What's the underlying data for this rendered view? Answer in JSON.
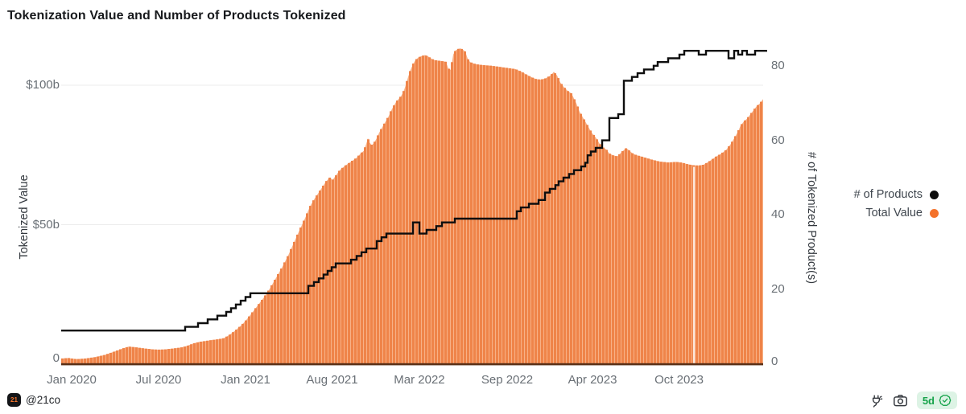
{
  "chart_data": {
    "type": "combo",
    "title": "Tokenization Value and Number of Products Tokenized",
    "x_axis": {
      "ticks": [
        {
          "label": "Jan 2020",
          "f": 0.0149
        },
        {
          "label": "Jul 2020",
          "f": 0.1388
        },
        {
          "label": "Jan 2021",
          "f": 0.2626
        },
        {
          "label": "Aug 2021",
          "f": 0.3859
        },
        {
          "label": "Mar 2022",
          "f": 0.5103
        },
        {
          "label": "Sep 2022",
          "f": 0.6353
        },
        {
          "label": "Apr 2023",
          "f": 0.7569
        },
        {
          "label": "Oct 2023",
          "f": 0.8802
        }
      ]
    },
    "left_axis": {
      "label": "Tokenized Value",
      "unit": "USD billions",
      "range": [
        0,
        116
      ],
      "ticks": [
        {
          "label": "0",
          "v": 0
        },
        {
          "label": "$50b",
          "v": 50
        },
        {
          "label": "$100b",
          "v": 100
        }
      ],
      "grid_values": [
        50,
        100
      ]
    },
    "right_axis": {
      "label": "# of Tokenized Product(s)",
      "range": [
        0,
        87
      ],
      "ticks": [
        {
          "label": "0",
          "v": 0
        },
        {
          "label": "20",
          "v": 20
        },
        {
          "label": "40",
          "v": 40
        },
        {
          "label": "60",
          "v": 60
        },
        {
          "label": "80",
          "v": 80
        }
      ]
    },
    "series": [
      {
        "name": "Total Value",
        "type": "bars",
        "axis": "left",
        "color": "#ef8449",
        "gap_color": "#f8b186",
        "points": [
          [
            0,
            2
          ],
          [
            0.0103,
            2.2
          ],
          [
            0.0218,
            1.8
          ],
          [
            0.0333,
            2
          ],
          [
            0.0482,
            2.5
          ],
          [
            0.0619,
            3.3
          ],
          [
            0.0734,
            4.3
          ],
          [
            0.0872,
            5.6
          ],
          [
            0.0963,
            6.3
          ],
          [
            0.1078,
            6
          ],
          [
            0.1193,
            5.6
          ],
          [
            0.1307,
            5.3
          ],
          [
            0.1388,
            5.2
          ],
          [
            0.1479,
            5.3
          ],
          [
            0.1594,
            5.6
          ],
          [
            0.1709,
            6
          ],
          [
            0.1789,
            6.5
          ],
          [
            0.1881,
            7.4
          ],
          [
            0.1972,
            8
          ],
          [
            0.2053,
            8.3
          ],
          [
            0.2133,
            8.6
          ],
          [
            0.2225,
            8.9
          ],
          [
            0.2317,
            9.3
          ],
          [
            0.2397,
            10.5
          ],
          [
            0.2477,
            12
          ],
          [
            0.2569,
            14
          ],
          [
            0.2626,
            15.5
          ],
          [
            0.2706,
            18
          ],
          [
            0.2798,
            21
          ],
          [
            0.289,
            24
          ],
          [
            0.297,
            27
          ],
          [
            0.305,
            30.5
          ],
          [
            0.3142,
            34.5
          ],
          [
            0.3234,
            39
          ],
          [
            0.3314,
            43.5
          ],
          [
            0.3394,
            48
          ],
          [
            0.3486,
            53
          ],
          [
            0.3544,
            56.5
          ],
          [
            0.3601,
            59
          ],
          [
            0.3681,
            62
          ],
          [
            0.3773,
            65.5
          ],
          [
            0.383,
            67
          ],
          [
            0.3865,
            66
          ],
          [
            0.3911,
            67.5
          ],
          [
            0.3968,
            69.5
          ],
          [
            0.4037,
            71
          ],
          [
            0.4094,
            72
          ],
          [
            0.4151,
            73
          ],
          [
            0.4209,
            74
          ],
          [
            0.4266,
            75.5
          ],
          [
            0.4312,
            76.5
          ],
          [
            0.4346,
            79
          ],
          [
            0.4369,
            81
          ],
          [
            0.4392,
            79.5
          ],
          [
            0.4427,
            78.5
          ],
          [
            0.4461,
            79.5
          ],
          [
            0.4495,
            81
          ],
          [
            0.453,
            83
          ],
          [
            0.4564,
            84.5
          ],
          [
            0.4599,
            86
          ],
          [
            0.4633,
            87.5
          ],
          [
            0.4667,
            89
          ],
          [
            0.4702,
            91
          ],
          [
            0.4736,
            92.5
          ],
          [
            0.4771,
            94
          ],
          [
            0.4805,
            95
          ],
          [
            0.4839,
            96
          ],
          [
            0.4874,
            97.5
          ],
          [
            0.4908,
            100
          ],
          [
            0.4943,
            103
          ],
          [
            0.4977,
            105.5
          ],
          [
            0.5011,
            107.5
          ],
          [
            0.5046,
            109
          ],
          [
            0.5092,
            110
          ],
          [
            0.5138,
            110.5
          ],
          [
            0.5183,
            110.8
          ],
          [
            0.5229,
            110.3
          ],
          [
            0.5275,
            109.5
          ],
          [
            0.5321,
            109
          ],
          [
            0.5378,
            108.8
          ],
          [
            0.5436,
            108.6
          ],
          [
            0.5482,
            108.4
          ],
          [
            0.5516,
            106
          ],
          [
            0.555,
            105.5
          ],
          [
            0.5585,
            111
          ],
          [
            0.5619,
            112.5
          ],
          [
            0.5654,
            113
          ],
          [
            0.5688,
            113.2
          ],
          [
            0.5722,
            112.8
          ],
          [
            0.5757,
            112
          ],
          [
            0.5791,
            109.5
          ],
          [
            0.5826,
            108.3
          ],
          [
            0.5872,
            107.8
          ],
          [
            0.5917,
            107.5
          ],
          [
            0.6009,
            107.2
          ],
          [
            0.6124,
            107
          ],
          [
            0.6239,
            106.6
          ],
          [
            0.6353,
            106.2
          ],
          [
            0.6468,
            105.8
          ],
          [
            0.656,
            104.8
          ],
          [
            0.6628,
            103.8
          ],
          [
            0.6697,
            102.9
          ],
          [
            0.6766,
            102.2
          ],
          [
            0.6835,
            102
          ],
          [
            0.6904,
            102.5
          ],
          [
            0.6972,
            103.5
          ],
          [
            0.7018,
            104.8
          ],
          [
            0.7064,
            103.5
          ],
          [
            0.711,
            101
          ],
          [
            0.7156,
            99.5
          ],
          [
            0.7213,
            98
          ],
          [
            0.7271,
            97
          ],
          [
            0.7339,
            93.5
          ],
          [
            0.7385,
            90.5
          ],
          [
            0.7443,
            88
          ],
          [
            0.75,
            85.5
          ],
          [
            0.7557,
            83
          ],
          [
            0.7615,
            81.3
          ],
          [
            0.7672,
            79
          ],
          [
            0.7729,
            77.5
          ],
          [
            0.7764,
            77
          ],
          [
            0.781,
            75.5
          ],
          [
            0.7867,
            74.8
          ],
          [
            0.7924,
            74.5
          ],
          [
            0.7982,
            76
          ],
          [
            0.805,
            77.5
          ],
          [
            0.8096,
            76.5
          ],
          [
            0.8142,
            75.5
          ],
          [
            0.8188,
            75
          ],
          [
            0.8257,
            74.5
          ],
          [
            0.8326,
            74
          ],
          [
            0.8417,
            73.3
          ],
          [
            0.8532,
            72.6
          ],
          [
            0.8647,
            72.3
          ],
          [
            0.8761,
            72.5
          ],
          [
            0.8853,
            72.2
          ],
          [
            0.8933,
            71.6
          ],
          [
            0.9014,
            71.3
          ],
          [
            0.9083,
            71.2
          ],
          [
            0.9151,
            71.5
          ],
          [
            0.922,
            72.5
          ],
          [
            0.9278,
            73.5
          ],
          [
            0.9335,
            74.5
          ],
          [
            0.9404,
            75.5
          ],
          [
            0.9472,
            76.8
          ],
          [
            0.9541,
            79
          ],
          [
            0.9599,
            81.5
          ],
          [
            0.9644,
            83.5
          ],
          [
            0.9679,
            85.5
          ],
          [
            0.9725,
            87
          ],
          [
            0.9771,
            88
          ],
          [
            0.9817,
            89.5
          ],
          [
            0.9862,
            91
          ],
          [
            0.9908,
            92.5
          ],
          [
            0.9954,
            93.5
          ],
          [
            1,
            95
          ]
        ]
      },
      {
        "name": "# of Products",
        "type": "step_line",
        "axis": "right",
        "color": "#0e0e0e",
        "points": [
          [
            0,
            9
          ],
          [
            0.1766,
            10
          ],
          [
            0.195,
            11
          ],
          [
            0.2087,
            12
          ],
          [
            0.2225,
            13
          ],
          [
            0.2351,
            14
          ],
          [
            0.242,
            15
          ],
          [
            0.2489,
            16
          ],
          [
            0.2557,
            17
          ],
          [
            0.2626,
            18
          ],
          [
            0.2695,
            19
          ],
          [
            0.3521,
            21
          ],
          [
            0.3601,
            22
          ],
          [
            0.367,
            23
          ],
          [
            0.3739,
            24
          ],
          [
            0.3796,
            25
          ],
          [
            0.3853,
            26
          ],
          [
            0.3911,
            27
          ],
          [
            0.4128,
            28
          ],
          [
            0.4209,
            29
          ],
          [
            0.4278,
            30
          ],
          [
            0.4346,
            31
          ],
          [
            0.4495,
            33
          ],
          [
            0.4564,
            34
          ],
          [
            0.4633,
            35
          ],
          [
            0.5011,
            38
          ],
          [
            0.5103,
            35
          ],
          [
            0.5206,
            36
          ],
          [
            0.5344,
            37
          ],
          [
            0.5424,
            38
          ],
          [
            0.5608,
            39
          ],
          [
            0.6491,
            41
          ],
          [
            0.6548,
            42
          ],
          [
            0.6663,
            43
          ],
          [
            0.68,
            44
          ],
          [
            0.6892,
            46
          ],
          [
            0.6961,
            47
          ],
          [
            0.7041,
            48
          ],
          [
            0.7087,
            49
          ],
          [
            0.7156,
            50
          ],
          [
            0.7236,
            51
          ],
          [
            0.7305,
            52
          ],
          [
            0.7408,
            53
          ],
          [
            0.7466,
            54
          ],
          [
            0.75,
            56
          ],
          [
            0.7546,
            57
          ],
          [
            0.7615,
            58
          ],
          [
            0.7706,
            60
          ],
          [
            0.781,
            66
          ],
          [
            0.7936,
            67
          ],
          [
            0.8016,
            76
          ],
          [
            0.8131,
            77
          ],
          [
            0.8211,
            78
          ],
          [
            0.8303,
            79
          ],
          [
            0.844,
            80
          ],
          [
            0.8498,
            81
          ],
          [
            0.8647,
            82
          ],
          [
            0.8807,
            83
          ],
          [
            0.8876,
            84
          ],
          [
            0.9083,
            83
          ],
          [
            0.9186,
            84
          ],
          [
            0.9507,
            82
          ],
          [
            0.9587,
            84
          ],
          [
            0.9644,
            83
          ],
          [
            0.9702,
            84
          ],
          [
            0.977,
            83
          ],
          [
            0.9885,
            84
          ]
        ]
      }
    ],
    "annotations": {
      "missing_bar_f": 0.9014
    },
    "legend_position": "right"
  },
  "legend": {
    "items": [
      {
        "label": "# of Products",
        "color": "#0e0e0e"
      },
      {
        "label": "Total Value",
        "color": "#f4722b"
      }
    ]
  },
  "footer": {
    "logo_text": "21",
    "handle": "@21co",
    "badge_label": "5d",
    "icons": [
      "plug-icon",
      "camera-icon",
      "verified-seal-icon"
    ]
  }
}
